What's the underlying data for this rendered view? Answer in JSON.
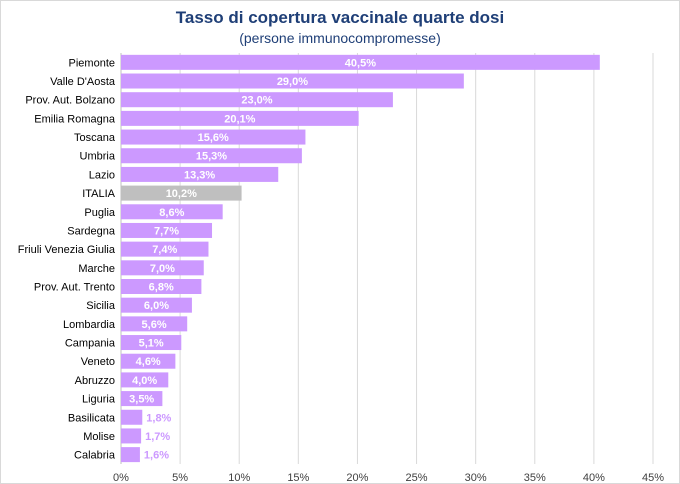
{
  "chart_data": {
    "type": "bar",
    "orientation": "horizontal",
    "title": "Tasso di copertura vaccinale quarte dosi",
    "subtitle": "(persone immunocompromesse)",
    "xlim": [
      0,
      45
    ],
    "x_ticks": [
      "0%",
      "5%",
      "10%",
      "15%",
      "20%",
      "25%",
      "30%",
      "35%",
      "40%",
      "45%"
    ],
    "grid": "vertical",
    "colors": {
      "regions": "#cc99ff",
      "italia": "#bfbfbf",
      "label_inside": "#ffffff",
      "label_outside": "#cc99ff",
      "title": "#1f3f77"
    },
    "categories": [
      "Piemonte",
      "Valle D'Aosta",
      "Prov. Aut. Bolzano",
      "Emilia Romagna",
      "Toscana",
      "Umbria",
      "Lazio",
      "ITALIA",
      "Puglia",
      "Sardegna",
      "Friuli Venezia Giulia",
      "Marche",
      "Prov. Aut. Trento",
      "Sicilia",
      "Lombardia",
      "Campania",
      "Veneto",
      "Abruzzo",
      "Liguria",
      "Basilicata",
      "Molise",
      "Calabria"
    ],
    "values": [
      40.5,
      29.0,
      23.0,
      20.1,
      15.6,
      15.3,
      13.3,
      10.2,
      8.6,
      7.7,
      7.4,
      7.0,
      6.8,
      6.0,
      5.6,
      5.1,
      4.6,
      4.0,
      3.5,
      1.8,
      1.7,
      1.6
    ],
    "labels": [
      "40,5%",
      "29,0%",
      "23,0%",
      "20,1%",
      "15,6%",
      "15,3%",
      "13,3%",
      "10,2%",
      "8,6%",
      "7,7%",
      "7,4%",
      "7,0%",
      "6,8%",
      "6,0%",
      "5,6%",
      "5,1%",
      "4,6%",
      "4,0%",
      "3,5%",
      "1,8%",
      "1,7%",
      "1,6%"
    ]
  }
}
